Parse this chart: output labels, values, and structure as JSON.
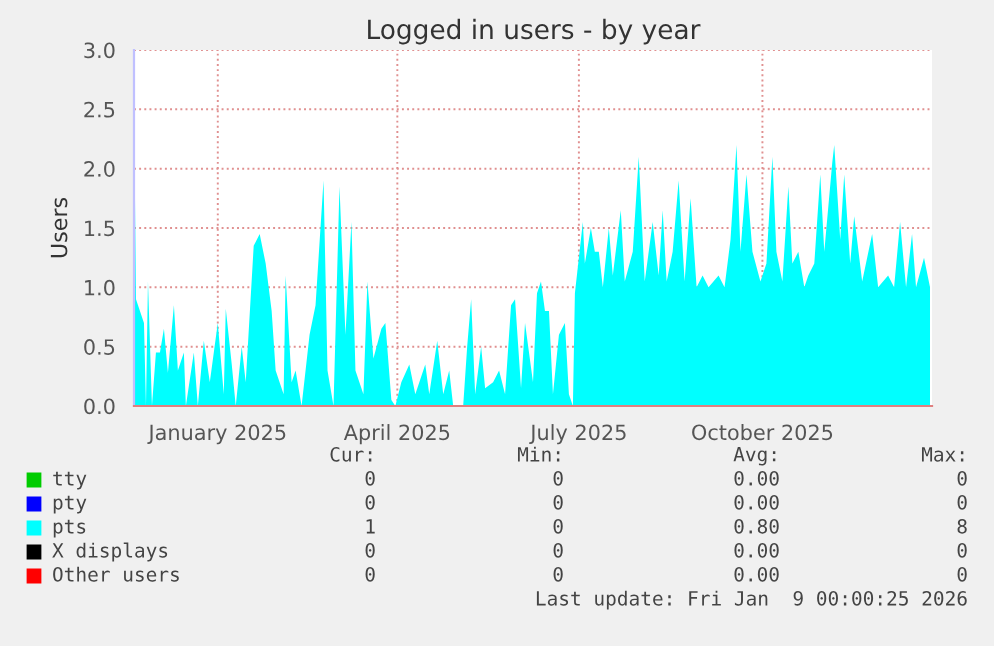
{
  "chart_data": {
    "type": "area",
    "title": "Logged in users - by year",
    "ylabel": "Users",
    "xlim": [
      "2024-12-05",
      "2026-01-09"
    ],
    "ylim": [
      0,
      3
    ],
    "xticks": [
      {
        "value": "2025-01-16",
        "label": "January 2025"
      },
      {
        "value": "2025-04-16",
        "label": "April 2025"
      },
      {
        "value": "2025-07-16",
        "label": "July 2025"
      },
      {
        "value": "2025-10-16",
        "label": "October 2025"
      }
    ],
    "yticks": [
      {
        "value": 0,
        "label": "0.0"
      },
      {
        "value": 0.5,
        "label": "0.5"
      },
      {
        "value": 1,
        "label": "1.0"
      },
      {
        "value": 1.5,
        "label": "1.5"
      },
      {
        "value": 2,
        "label": "2.0"
      },
      {
        "value": 2.5,
        "label": "2.5"
      },
      {
        "value": 3,
        "label": "3.0"
      }
    ],
    "grid": true,
    "legend": "bottom",
    "series": [
      {
        "name": "tty",
        "color": "#00cc00"
      },
      {
        "name": "pty",
        "color": "#0000ff"
      },
      {
        "name": "pts",
        "color": "#00ffff",
        "x": [
          "2024-12-05",
          "2024-12-06",
          "2024-12-10",
          "2024-12-11",
          "2024-12-12",
          "2024-12-14",
          "2024-12-16",
          "2024-12-18",
          "2024-12-20",
          "2024-12-22",
          "2024-12-25",
          "2024-12-27",
          "2024-12-30",
          "2024-12-31",
          "2025-01-04",
          "2025-01-06",
          "2025-01-09",
          "2025-01-12",
          "2025-01-14",
          "2025-01-16",
          "2025-01-19",
          "2025-01-20",
          "2025-01-23",
          "2025-01-25",
          "2025-01-28",
          "2025-01-30",
          "2025-02-03",
          "2025-02-06",
          "2025-02-09",
          "2025-02-12",
          "2025-02-14",
          "2025-02-18",
          "2025-02-19",
          "2025-02-22",
          "2025-02-24",
          "2025-02-27",
          "2025-03-03",
          "2025-03-06",
          "2025-03-10",
          "2025-03-12",
          "2025-03-15",
          "2025-03-18",
          "2025-03-21",
          "2025-03-24",
          "2025-03-26",
          "2025-03-30",
          "2025-04-01",
          "2025-04-04",
          "2025-04-08",
          "2025-04-10",
          "2025-04-13",
          "2025-04-15",
          "2025-04-18",
          "2025-04-22",
          "2025-04-25",
          "2025-04-30",
          "2025-05-02",
          "2025-05-06",
          "2025-05-09",
          "2025-05-12",
          "2025-05-14",
          "2025-05-19",
          "2025-05-21",
          "2025-05-23",
          "2025-05-25",
          "2025-05-28",
          "2025-05-30",
          "2025-06-03",
          "2025-06-06",
          "2025-06-09",
          "2025-06-12",
          "2025-06-14",
          "2025-06-17",
          "2025-06-19",
          "2025-06-23",
          "2025-06-25",
          "2025-06-27",
          "2025-06-29",
          "2025-07-01",
          "2025-07-03",
          "2025-07-06",
          "2025-07-09",
          "2025-07-11",
          "2025-07-13",
          "2025-07-14",
          "2025-07-18",
          "2025-07-19",
          "2025-07-22",
          "2025-07-24",
          "2025-07-26",
          "2025-07-28",
          "2025-07-31",
          "2025-08-02",
          "2025-08-06",
          "2025-08-08",
          "2025-08-12",
          "2025-08-15",
          "2025-08-18",
          "2025-08-22",
          "2025-08-25",
          "2025-08-27",
          "2025-08-29",
          "2025-09-01",
          "2025-09-04",
          "2025-09-07",
          "2025-09-10",
          "2025-09-13",
          "2025-09-16",
          "2025-09-19",
          "2025-09-24",
          "2025-09-27",
          "2025-09-30",
          "2025-10-03",
          "2025-10-05",
          "2025-10-08",
          "2025-10-11",
          "2025-10-15",
          "2025-10-18",
          "2025-10-21",
          "2025-10-23",
          "2025-10-26",
          "2025-10-29",
          "2025-10-31",
          "2025-11-03",
          "2025-11-06",
          "2025-11-08",
          "2025-11-11",
          "2025-11-14",
          "2025-11-16",
          "2025-11-20",
          "2025-11-21",
          "2025-11-24",
          "2025-11-26",
          "2025-11-29",
          "2025-12-01",
          "2025-12-05",
          "2025-12-10",
          "2025-12-13",
          "2025-12-18",
          "2025-12-21",
          "2025-12-24",
          "2025-12-27",
          "2025-12-30",
          "2026-01-01",
          "2026-01-05",
          "2026-01-08"
        ],
        "values": [
          2.6,
          0.9,
          0.7,
          0,
          1.05,
          0,
          0.45,
          0.45,
          0.65,
          0.28,
          0.85,
          0.3,
          0.45,
          0,
          0.45,
          0,
          0.55,
          0.2,
          0.45,
          0.7,
          0.1,
          0.82,
          0.35,
          0,
          0.5,
          0.2,
          1.35,
          1.45,
          1.2,
          0.8,
          0.3,
          0.1,
          1.1,
          0.2,
          0.3,
          0,
          0.6,
          0.85,
          1.9,
          0.3,
          0,
          1.85,
          0.6,
          1.55,
          0.3,
          0.1,
          1.05,
          0.4,
          0.65,
          0.7,
          0.05,
          0,
          0.2,
          0.35,
          0.1,
          0.35,
          0.1,
          0.55,
          0.1,
          0.3,
          0,
          0,
          0.5,
          0.9,
          0.1,
          0.5,
          0.15,
          0.2,
          0.3,
          0.1,
          0.85,
          0.9,
          0.15,
          0.7,
          0.2,
          0.95,
          1.05,
          0.8,
          0.8,
          0.1,
          0.6,
          0.7,
          0.1,
          0,
          0.95,
          1.55,
          1.2,
          1.5,
          1.3,
          1.3,
          1.0,
          1.5,
          1.1,
          1.65,
          1.05,
          1.3,
          2.1,
          1.05,
          1.55,
          1.1,
          1.65,
          1.05,
          1.3,
          1.9,
          1.05,
          1.75,
          1.0,
          1.1,
          1.0,
          1.1,
          1.0,
          1.4,
          2.2,
          1.3,
          1.95,
          1.3,
          1.05,
          1.2,
          2.1,
          1.3,
          1.05,
          1.85,
          1.2,
          1.3,
          1.0,
          1.1,
          1.2,
          1.95,
          1.3,
          2.05,
          2.2,
          1.4,
          1.95,
          1.2,
          1.6,
          1.05,
          1.45,
          1.0,
          1.1,
          1.0,
          1.55,
          1.0,
          1.45,
          1.0,
          1.25,
          1.0
        ]
      },
      {
        "name": "X displays",
        "color": "#000000"
      },
      {
        "name": "Other users",
        "color": "#ff0000"
      }
    ],
    "annotations": [
      "Cur:",
      "Min:",
      "Avg:",
      "Max:",
      "0",
      "0",
      "0.00",
      "0",
      "0",
      "0",
      "0.00",
      "0",
      "1",
      "0",
      "0.80",
      "8",
      "0",
      "0",
      "0.00",
      "0",
      "0",
      "0",
      "0.00",
      "0",
      "Last update: Fri Jan  9 00:00:25 2026"
    ]
  }
}
